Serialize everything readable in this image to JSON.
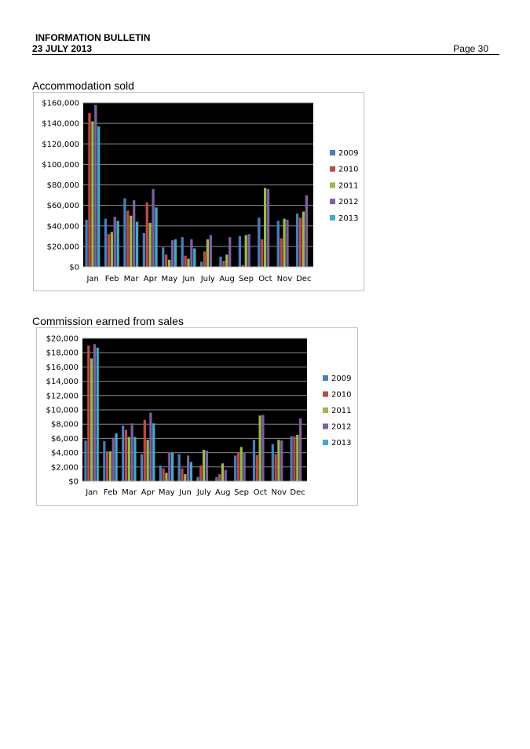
{
  "header": {
    "line1": "INFORMATION BULLETIN",
    "line2": "23 JULY 2013",
    "page": "Page 30"
  },
  "colors": {
    "2009": "#4a7ebb",
    "2010": "#be4b48",
    "2011": "#98b954",
    "2012": "#7d60a0",
    "2013": "#46aac5"
  },
  "chart_data": [
    {
      "type": "bar",
      "title": "Accommodation sold",
      "categories": [
        "Jan",
        "Feb",
        "Mar",
        "Apr",
        "May",
        "Jun",
        "July",
        "Aug",
        "Sep",
        "Oct",
        "Nov",
        "Dec"
      ],
      "ylim": [
        0,
        160000
      ],
      "ytick_labels": [
        "$0",
        "$20,000",
        "$40,000",
        "$60,000",
        "$80,000",
        "$100,000",
        "$120,000",
        "$140,000",
        "$160,000"
      ],
      "series": [
        {
          "name": "2009",
          "values": [
            46000,
            47000,
            67000,
            33000,
            19000,
            29000,
            5000,
            10000,
            30000,
            48000,
            45000,
            52000
          ]
        },
        {
          "name": "2010",
          "values": [
            150000,
            32000,
            55000,
            63000,
            12000,
            11000,
            15000,
            6000,
            2000,
            27000,
            28000,
            48000
          ]
        },
        {
          "name": "2011",
          "values": [
            142000,
            34000,
            50000,
            43000,
            7000,
            8000,
            27000,
            12000,
            31000,
            77000,
            47000,
            54000
          ]
        },
        {
          "name": "2012",
          "values": [
            158000,
            49000,
            65000,
            76000,
            26000,
            27000,
            31000,
            29000,
            32000,
            76000,
            46000,
            70000
          ]
        },
        {
          "name": "2013",
          "values": [
            137000,
            45000,
            44000,
            58000,
            27000,
            18000,
            0,
            0,
            0,
            0,
            0,
            0
          ]
        }
      ]
    },
    {
      "type": "bar",
      "title": "Commission earned from sales",
      "categories": [
        "Jan",
        "Feb",
        "Mar",
        "Apr",
        "May",
        "Jun",
        "July",
        "Aug",
        "Sep",
        "Oct",
        "Nov",
        "Dec"
      ],
      "ylim": [
        0,
        20000
      ],
      "ytick_labels": [
        "$0",
        "$2,000",
        "$4,000",
        "$6,000",
        "$8,000",
        "$10,000",
        "$12,000",
        "$14,000",
        "$16,000",
        "$18,000",
        "$20,000"
      ],
      "series": [
        {
          "name": "2009",
          "values": [
            5700,
            5600,
            7800,
            3800,
            2200,
            3800,
            600,
            600,
            3600,
            5800,
            5200,
            6300
          ]
        },
        {
          "name": "2010",
          "values": [
            19000,
            4200,
            7200,
            8600,
            1800,
            1800,
            2200,
            1000,
            4000,
            3700,
            3800,
            6300
          ]
        },
        {
          "name": "2011",
          "values": [
            17200,
            4200,
            6200,
            5800,
            1200,
            1000,
            4400,
            2500,
            4800,
            9200,
            5800,
            6500
          ]
        },
        {
          "name": "2012",
          "values": [
            19200,
            6100,
            8100,
            9600,
            4000,
            3600,
            4300,
            1600,
            4000,
            9300,
            5700,
            8800
          ]
        },
        {
          "name": "2013",
          "values": [
            18700,
            6700,
            6200,
            8100,
            4000,
            2700,
            0,
            0,
            0,
            0,
            0,
            0
          ]
        }
      ]
    }
  ]
}
